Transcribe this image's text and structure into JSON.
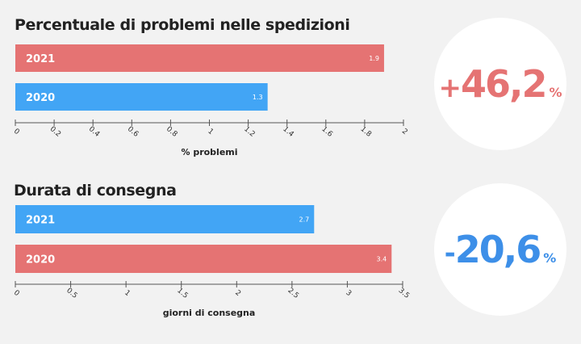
{
  "colors": {
    "red": "#e57373",
    "blue": "#42a5f5",
    "axis": "#555555",
    "text": "#222222"
  },
  "chart_data": [
    {
      "type": "bar",
      "orientation": "horizontal",
      "title": "Percentuale di problemi nelle spedizioni",
      "xlabel": "% problemi",
      "categories": [
        "2021",
        "2020"
      ],
      "values": [
        1.9,
        1.3
      ],
      "value_labels": [
        "1.9",
        "1.3"
      ],
      "bar_colors": [
        "#e57373",
        "#42a5f5"
      ],
      "xlim": [
        0,
        2
      ],
      "ticks": [
        0,
        0.2,
        0.4,
        0.6,
        0.8,
        1,
        1.2,
        1.4,
        1.6,
        1.8,
        2
      ],
      "tick_labels": [
        "0",
        "0.2",
        "0.4",
        "0.6",
        "0.8",
        "1",
        "1.2",
        "1.4",
        "1.6",
        "1.8",
        "2"
      ],
      "grid": false,
      "highlight": {
        "sign": "+",
        "value": "46,2",
        "unit": "%",
        "color": "#e57373"
      }
    },
    {
      "type": "bar",
      "orientation": "horizontal",
      "title": "Durata di consegna",
      "xlabel": "giorni di consegna",
      "categories": [
        "2021",
        "2020"
      ],
      "values": [
        2.7,
        3.4
      ],
      "value_labels": [
        "2.7",
        "3.4"
      ],
      "bar_colors": [
        "#42a5f5",
        "#e57373"
      ],
      "xlim": [
        0,
        3.5
      ],
      "ticks": [
        0,
        0.5,
        1,
        1.5,
        2,
        2.5,
        3,
        3.5
      ],
      "tick_labels": [
        "0",
        "0.5",
        "1",
        "1.5",
        "2",
        "2.5",
        "3",
        "3.5"
      ],
      "grid": false,
      "highlight": {
        "sign": "-",
        "value": "20,6",
        "unit": "%",
        "color": "#3d8fe8"
      }
    }
  ]
}
